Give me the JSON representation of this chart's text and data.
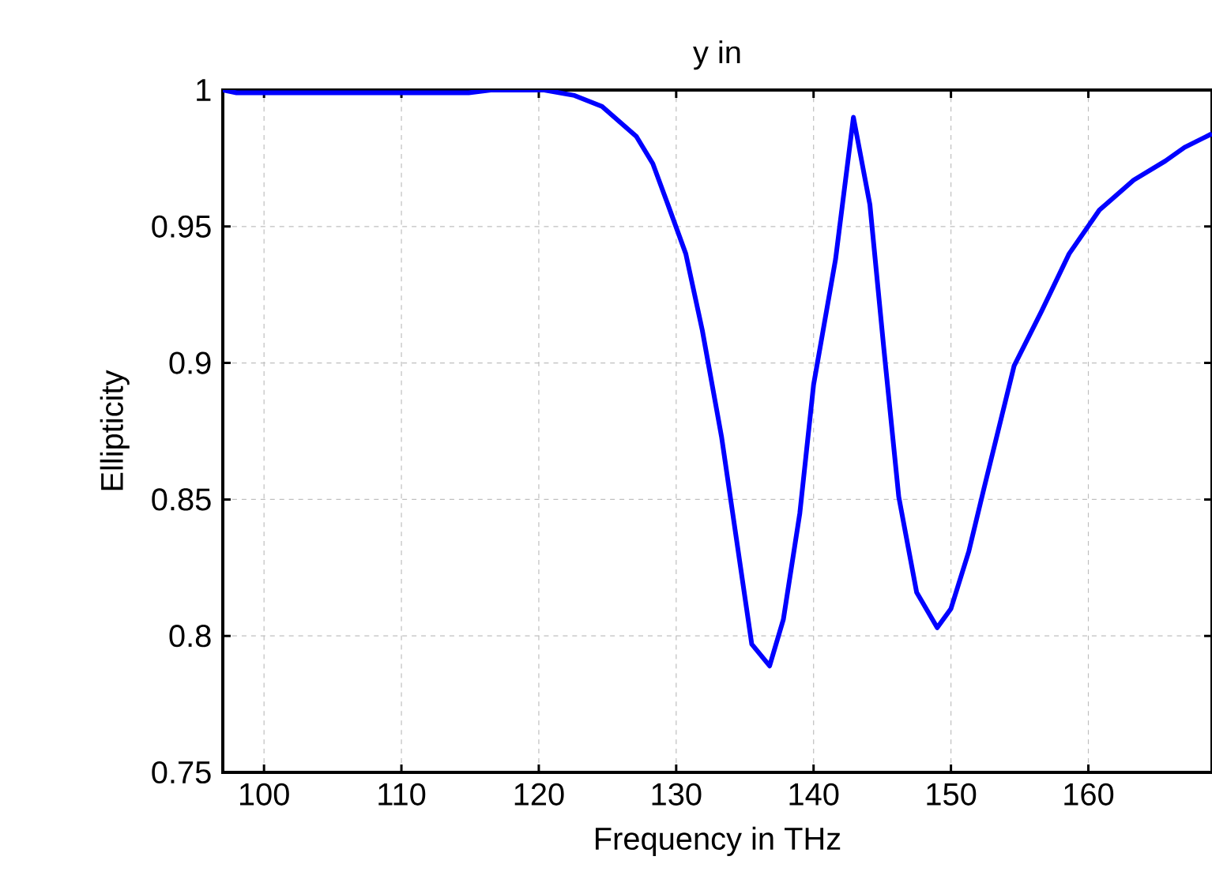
{
  "chart_data": {
    "type": "line",
    "title": "y  in",
    "xlabel": "Frequency in THz",
    "ylabel": "Ellipticity",
    "x": [
      97.0,
      98.0,
      114.9,
      116.5,
      120.4,
      122.6,
      124.6,
      127.1,
      128.3,
      129.4,
      130.7,
      131.9,
      133.3,
      135.5,
      136.8,
      137.8,
      139.0,
      140.0,
      141.6,
      142.9,
      144.1,
      145.1,
      146.2,
      147.5,
      149.0,
      150.0,
      151.3,
      152.4,
      154.6,
      156.6,
      158.6,
      160.8,
      163.3,
      165.6,
      167.0,
      169.0
    ],
    "series": [
      {
        "color": "#0000ff",
        "values": [
          1.0,
          0.999,
          0.999,
          1.0,
          1.0,
          0.998,
          0.994,
          0.983,
          0.973,
          0.958,
          0.94,
          0.912,
          0.873,
          0.797,
          0.789,
          0.806,
          0.845,
          0.892,
          0.938,
          0.99,
          0.958,
          0.906,
          0.851,
          0.816,
          0.803,
          0.81,
          0.831,
          0.854,
          0.899,
          0.919,
          0.94,
          0.956,
          0.967,
          0.974,
          0.979,
          0.984
        ]
      }
    ],
    "xlim": [
      97,
      169
    ],
    "ylim": [
      0.75,
      1
    ],
    "xticks": [
      100,
      110,
      120,
      130,
      140,
      150,
      160
    ],
    "yticks": [
      0.75,
      0.8,
      0.85,
      0.9,
      0.95,
      1
    ],
    "grid": true,
    "marker": "none",
    "line_style": "solid"
  }
}
